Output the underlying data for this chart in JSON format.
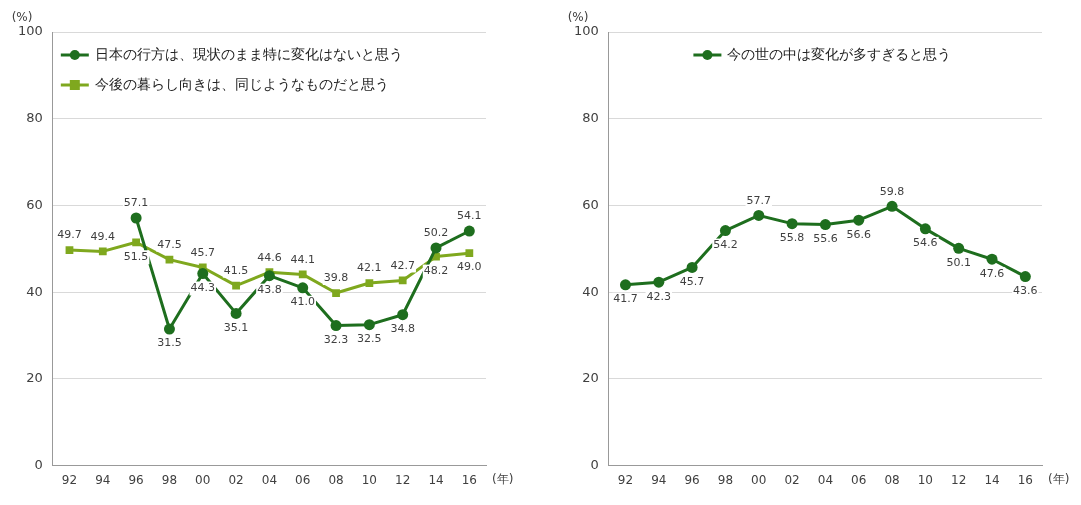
{
  "chart_data": [
    {
      "type": "line",
      "categories": [
        "92",
        "94",
        "96",
        "98",
        "00",
        "02",
        "04",
        "06",
        "08",
        "10",
        "12",
        "14",
        "16"
      ],
      "xlabel": "(年)",
      "ylabel": "(%)",
      "ylim": [
        0,
        100
      ],
      "yticks": [
        0,
        20,
        40,
        60,
        80,
        100
      ],
      "grid": "y",
      "legend": "top left",
      "line_style": "solid",
      "series": [
        {
          "name": "日本の行方は、現状のまま特に変化はないと思う",
          "color": "#1e6e1e",
          "marker": "circle",
          "values": [
            null,
            null,
            57.1,
            31.5,
            44.3,
            35.1,
            43.8,
            41.0,
            32.3,
            32.5,
            34.8,
            50.2,
            54.1
          ],
          "value_labels": [
            null,
            null,
            "57.1",
            "31.5",
            "44.3",
            "35.1",
            "43.8",
            "41.0",
            "32.3",
            "32.5",
            "34.8",
            "50.2",
            "54.1"
          ]
        },
        {
          "name": "今後の暮らし向きは、同じようなものだと思う",
          "color": "#7fa81e",
          "marker": "square",
          "values": [
            49.7,
            49.4,
            51.5,
            47.5,
            45.7,
            41.5,
            44.6,
            44.1,
            39.8,
            42.1,
            42.7,
            48.2,
            49.0
          ],
          "value_labels": [
            "49.7",
            "49.4",
            "51.5",
            "47.5",
            "45.7",
            "41.5",
            "44.6",
            "44.1",
            "39.8",
            "42.1",
            "42.7",
            "48.2",
            "49.0"
          ]
        }
      ]
    },
    {
      "type": "line",
      "categories": [
        "92",
        "94",
        "96",
        "98",
        "00",
        "02",
        "04",
        "06",
        "08",
        "10",
        "12",
        "14",
        "16"
      ],
      "xlabel": "(年)",
      "ylabel": "(%)",
      "ylim": [
        0,
        100
      ],
      "yticks": [
        0,
        20,
        40,
        60,
        80,
        100
      ],
      "grid": "y",
      "legend": "top",
      "line_style": "solid",
      "series": [
        {
          "name": "今の世の中は変化が多すぎると思う",
          "color": "#1e6e1e",
          "marker": "circle",
          "values": [
            41.7,
            42.3,
            45.7,
            54.2,
            57.7,
            55.8,
            55.6,
            56.6,
            59.8,
            54.6,
            50.1,
            47.6,
            43.6
          ],
          "value_labels": [
            "41.7",
            "42.3",
            "45.7",
            "54.2",
            "57.7",
            "55.8",
            "55.6",
            "56.6",
            "59.8",
            "54.6",
            "50.1",
            "47.6",
            "43.6"
          ]
        }
      ]
    }
  ]
}
